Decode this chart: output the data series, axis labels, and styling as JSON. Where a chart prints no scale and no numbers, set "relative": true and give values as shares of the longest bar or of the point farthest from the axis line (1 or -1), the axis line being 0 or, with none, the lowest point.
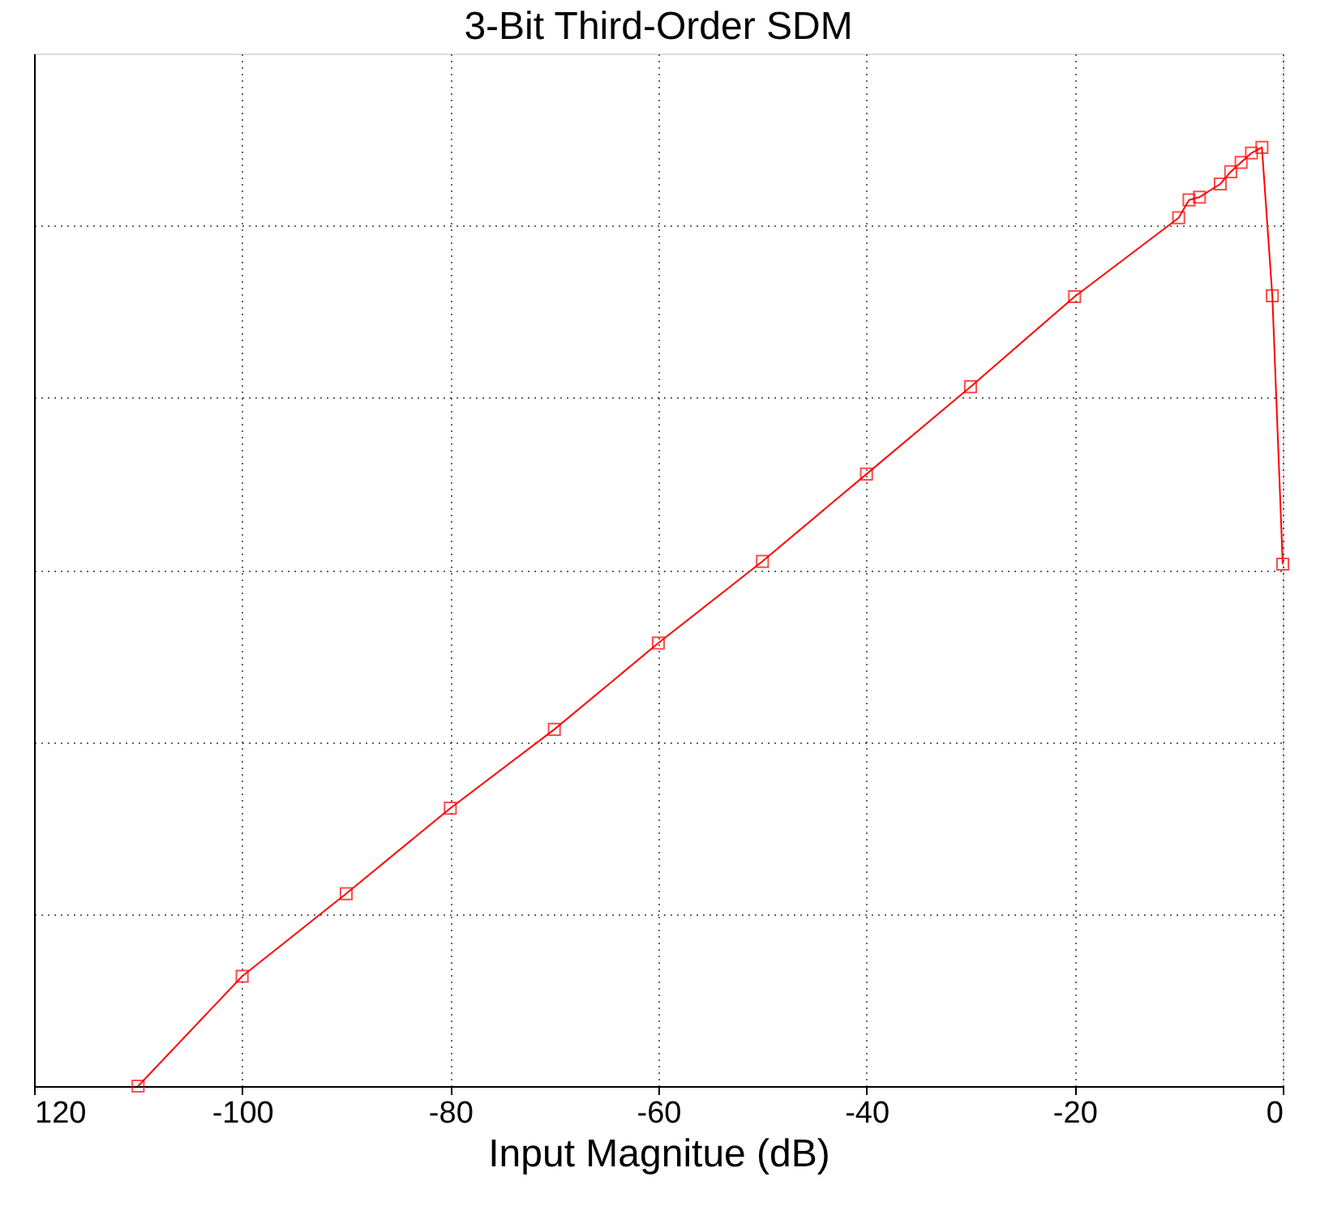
{
  "chart_data": {
    "type": "line",
    "title": "3-Bit Third-Order SDM",
    "xlabel": "Input Magnitue (dB)",
    "x": [
      -110,
      -100,
      -90,
      -80,
      -70,
      -60,
      -50,
      -40,
      -30,
      -20,
      -10,
      -9,
      -8,
      -6,
      -5,
      -4,
      -3,
      -2,
      -1,
      0
    ],
    "series": [
      {
        "color": "#ff0000",
        "values": [
          0,
          0.117,
          0.205,
          0.296,
          0.38,
          0.472,
          0.559,
          0.652,
          0.745,
          0.841,
          0.925,
          0.944,
          0.947,
          0.961,
          0.974,
          0.984,
          0.994,
          1,
          0.842,
          0.556
        ]
      }
    ],
    "relative": true,
    "xlim": [
      -120,
      0
    ],
    "xticks": [
      {
        "value": -120,
        "label": "120"
      },
      -100,
      -80,
      -60,
      -40,
      -20,
      0
    ],
    "grid": true,
    "marker": "square",
    "line_style": "solid"
  }
}
